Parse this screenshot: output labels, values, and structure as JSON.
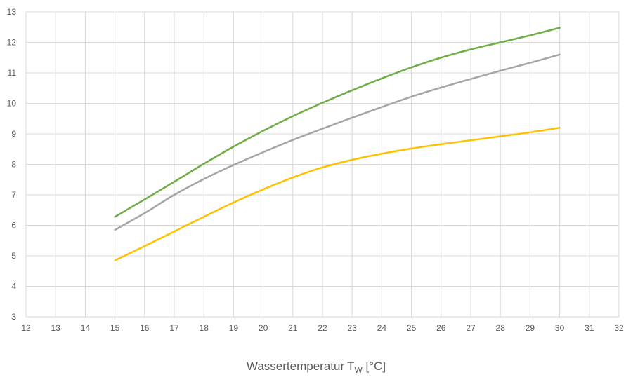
{
  "chart_data": {
    "type": "line",
    "xlabel": "Wassertemperatur",
    "xlabel_sub": "W",
    "xlabel_unit": " [°C]",
    "ylabel": "",
    "xlim": [
      12,
      32
    ],
    "ylim": [
      3,
      13
    ],
    "xticks": [
      12,
      13,
      14,
      15,
      16,
      17,
      18,
      19,
      20,
      21,
      22,
      23,
      24,
      25,
      26,
      27,
      28,
      29,
      30,
      31,
      32
    ],
    "yticks": [
      3,
      4,
      5,
      6,
      7,
      8,
      9,
      10,
      11,
      12,
      13
    ],
    "grid": true,
    "legend": "none",
    "x": [
      15,
      16,
      17,
      18,
      19,
      20,
      21,
      22,
      23,
      24,
      25,
      26,
      27,
      28,
      29,
      30
    ],
    "series": [
      {
        "color": "#70ad47",
        "values": [
          6.28,
          6.85,
          7.43,
          8.02,
          8.58,
          9.1,
          9.58,
          10.02,
          10.43,
          10.82,
          11.18,
          11.5,
          11.77,
          12.0,
          12.23,
          12.48
        ]
      },
      {
        "color": "#a5a5a5",
        "values": [
          5.85,
          6.4,
          7.0,
          7.52,
          7.98,
          8.4,
          8.8,
          9.17,
          9.53,
          9.88,
          10.22,
          10.52,
          10.8,
          11.07,
          11.33,
          11.6
        ]
      },
      {
        "color": "#ffc000",
        "values": [
          4.85,
          5.32,
          5.8,
          6.28,
          6.75,
          7.18,
          7.57,
          7.9,
          8.15,
          8.35,
          8.52,
          8.66,
          8.79,
          8.92,
          9.05,
          9.2
        ]
      }
    ]
  }
}
